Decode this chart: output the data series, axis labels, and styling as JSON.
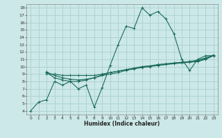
{
  "bg_color": "#cce8e8",
  "grid_color": "#aad0d0",
  "line_color": "#1a6b5a",
  "xlabel": "Humidex (Indice chaleur)",
  "xlim": [
    -0.5,
    23.5
  ],
  "ylim": [
    3.5,
    18.5
  ],
  "yticks": [
    4,
    5,
    6,
    7,
    8,
    9,
    10,
    11,
    12,
    13,
    14,
    15,
    16,
    17,
    18
  ],
  "xticks": [
    0,
    1,
    2,
    3,
    4,
    5,
    6,
    7,
    8,
    9,
    10,
    11,
    12,
    13,
    14,
    15,
    16,
    17,
    18,
    19,
    20,
    21,
    22,
    23
  ],
  "line1_x": [
    0,
    1,
    2,
    3,
    4,
    5,
    6,
    7,
    8,
    9,
    10,
    11,
    12,
    13,
    14,
    15,
    16,
    17,
    18,
    19,
    20,
    21,
    22,
    23
  ],
  "line1_y": [
    4.0,
    5.2,
    5.5,
    8.0,
    7.5,
    8.0,
    7.0,
    7.5,
    4.5,
    7.2,
    10.2,
    13.0,
    15.5,
    15.2,
    18.0,
    17.0,
    17.5,
    16.5,
    14.5,
    11.0,
    9.5,
    11.0,
    11.5,
    11.5
  ],
  "line2_x": [
    2,
    3,
    4,
    5,
    6,
    7,
    8,
    9,
    10,
    11,
    12,
    13,
    14,
    15,
    16,
    17,
    18,
    19,
    20,
    21,
    22,
    23
  ],
  "line2_y": [
    9.0,
    9.0,
    8.8,
    8.8,
    8.8,
    8.8,
    8.8,
    9.0,
    9.2,
    9.4,
    9.6,
    9.8,
    10.0,
    10.1,
    10.2,
    10.3,
    10.4,
    10.5,
    10.6,
    10.7,
    11.0,
    11.5
  ],
  "line3_x": [
    2,
    3,
    4,
    5,
    6,
    7,
    8,
    9,
    10,
    11,
    12,
    13,
    14,
    15,
    16,
    17,
    18,
    19,
    20,
    21,
    22,
    23
  ],
  "line3_y": [
    9.2,
    8.5,
    8.2,
    8.0,
    8.0,
    8.2,
    8.5,
    8.8,
    9.0,
    9.2,
    9.5,
    9.7,
    9.9,
    10.0,
    10.2,
    10.3,
    10.5,
    10.6,
    10.7,
    10.8,
    11.1,
    11.5
  ],
  "line4_x": [
    2,
    3,
    4,
    5,
    6,
    7,
    8,
    9,
    10,
    11,
    12,
    13,
    14,
    15,
    16,
    17,
    18,
    19,
    20,
    21,
    22,
    23
  ],
  "line4_y": [
    9.3,
    8.8,
    8.5,
    8.3,
    8.2,
    8.3,
    8.5,
    8.9,
    9.2,
    9.4,
    9.6,
    9.8,
    10.0,
    10.1,
    10.3,
    10.4,
    10.5,
    10.6,
    10.7,
    10.9,
    11.2,
    11.6
  ]
}
